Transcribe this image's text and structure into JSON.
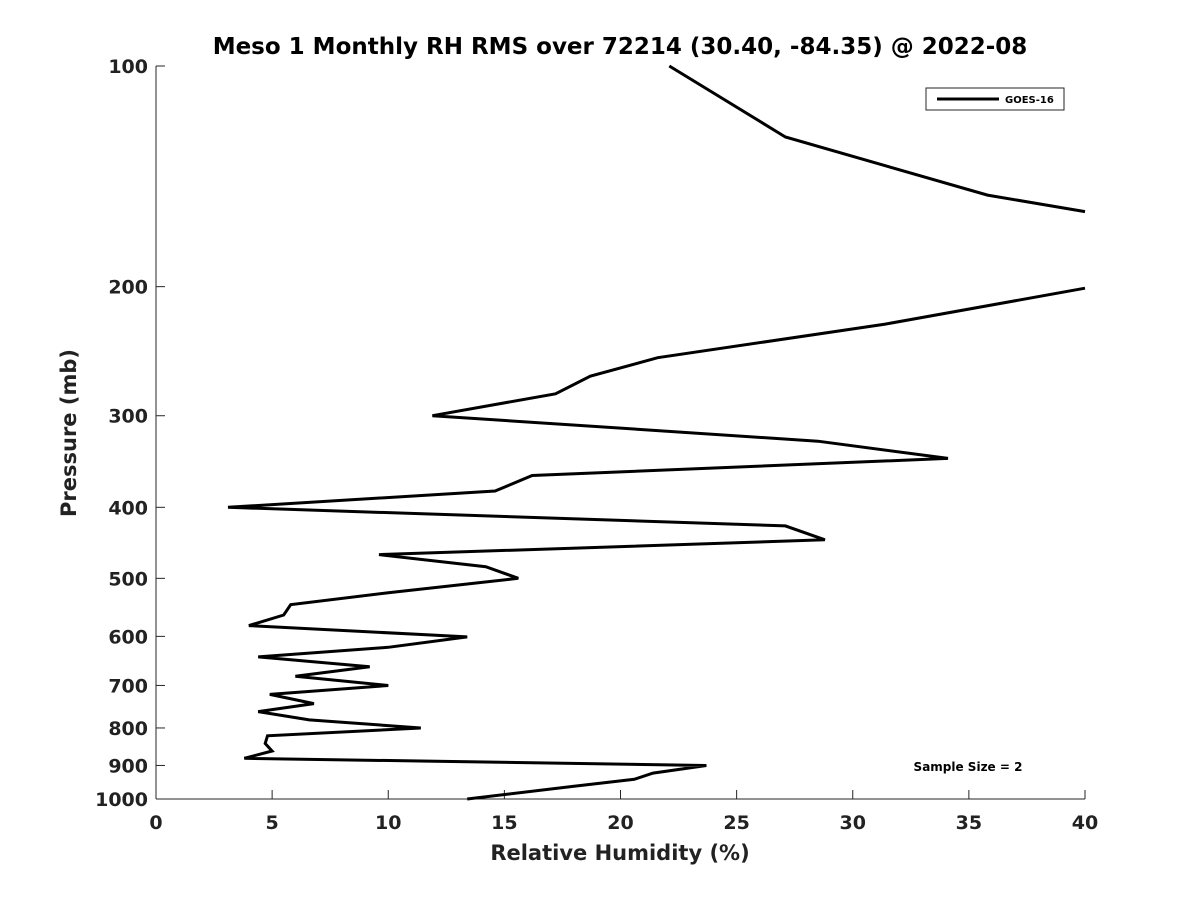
{
  "chart_data": {
    "type": "line",
    "title": "Meso 1 Monthly RH RMS over 72214 (30.40, -84.35) @ 2022-08",
    "xlabel": "Relative Humidity (%)",
    "ylabel": "Pressure (mb)",
    "xlim": [
      0,
      40
    ],
    "ylim": [
      1000,
      100
    ],
    "yscale": "log",
    "y_reversed": true,
    "grid": false,
    "legend_position": "top-right",
    "xticks": [
      0,
      5,
      10,
      15,
      20,
      25,
      30,
      35,
      40
    ],
    "yticks": [
      100,
      200,
      300,
      400,
      500,
      600,
      700,
      800,
      900,
      1000
    ],
    "annotation": "Sample Size = 2",
    "series": [
      {
        "name": "GOES-16",
        "color": "#000000",
        "points": [
          [
            22.1,
            100
          ],
          [
            27.1,
            125
          ],
          [
            35.8,
            150
          ],
          [
            40.0,
            158
          ],
          [
            null,
            null
          ],
          [
            40.0,
            201
          ],
          [
            31.4,
            225
          ],
          [
            21.6,
            250
          ],
          [
            18.7,
            265
          ],
          [
            17.2,
            280
          ],
          [
            11.9,
            300
          ],
          [
            28.5,
            325
          ],
          [
            34.1,
            343
          ],
          [
            16.2,
            362
          ],
          [
            14.6,
            380
          ],
          [
            3.1,
            400
          ],
          [
            27.1,
            424
          ],
          [
            28.8,
            443
          ],
          [
            9.6,
            464
          ],
          [
            14.2,
            482
          ],
          [
            15.6,
            500
          ],
          [
            10.0,
            523
          ],
          [
            5.8,
            543
          ],
          [
            5.5,
            561
          ],
          [
            4.0,
            580
          ],
          [
            13.4,
            601
          ],
          [
            10.0,
            621
          ],
          [
            4.4,
            640
          ],
          [
            9.2,
            660
          ],
          [
            6.0,
            680
          ],
          [
            10.0,
            700
          ],
          [
            4.9,
            720
          ],
          [
            6.8,
            741
          ],
          [
            4.4,
            760
          ],
          [
            6.6,
            780
          ],
          [
            11.4,
            800
          ],
          [
            4.8,
            820
          ],
          [
            4.7,
            840
          ],
          [
            5.0,
            860
          ],
          [
            3.8,
            880
          ],
          [
            23.7,
            900
          ],
          [
            21.4,
            922
          ],
          [
            20.6,
            940
          ],
          [
            18.0,
            961
          ],
          [
            13.4,
            1000
          ]
        ]
      }
    ]
  }
}
